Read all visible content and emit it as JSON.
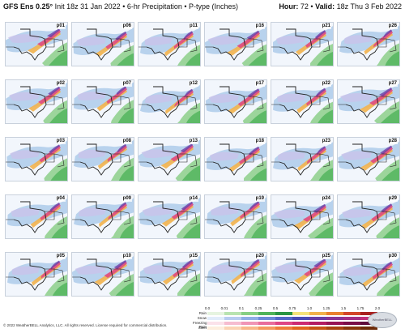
{
  "header": {
    "title_bold": "GFS Ens 0.25°",
    "title_rest": " Init 18z 31 Jan 2022 • 6-hr Precipitation • P-type (Inches)",
    "hour_label": "Hour:",
    "hour_value": "72",
    "valid_label": "Valid:",
    "valid_value": "18z Thu 3 Feb 2022"
  },
  "panels": [
    "p01",
    "p06",
    "p11",
    "p16",
    "p21",
    "p26",
    "p02",
    "p07",
    "p12",
    "p17",
    "p22",
    "p27",
    "p03",
    "p08",
    "p13",
    "p18",
    "p23",
    "p28",
    "p04",
    "p09",
    "p14",
    "p19",
    "p24",
    "p29",
    "p05",
    "p10",
    "p15",
    "p20",
    "p25",
    "p30"
  ],
  "legend": {
    "ticks": [
      "0.0",
      "0.01",
      "0.1",
      "0.25",
      "0.5",
      "0.75",
      "1.0",
      "1.25",
      "1.5",
      "1.75",
      "2.0"
    ],
    "rows": [
      {
        "name": "Rain",
        "colors": [
          "#e6f4e0",
          "#b8e3b0",
          "#86cf84",
          "#4fb35a",
          "#2a9444",
          "#f4e37a",
          "#f2b24c",
          "#e9802f",
          "#d3462a",
          "#a8211f"
        ]
      },
      {
        "name": "Snow",
        "colors": [
          "#e1ecfa",
          "#b7ccf0",
          "#8eaee6",
          "#6c8ad8",
          "#5468c8",
          "#4a4cb4",
          "#6a3ea6",
          "#883596",
          "#a22f86",
          "#c0307a"
        ]
      },
      {
        "name": "Freezing Rain",
        "colors": [
          "#fbe2ea",
          "#f6bcd0",
          "#f094b5",
          "#e86c9b",
          "#de4584",
          "#cc2a72",
          "#b31c62",
          "#961455",
          "#7a0f48",
          "#5e0b3b"
        ]
      },
      {
        "name": "Sleet",
        "colors": [
          "#fdeede",
          "#fbd3b4",
          "#f8b78a",
          "#f4995f",
          "#ee7d3a",
          "#e0661f",
          "#c55414",
          "#a7440f",
          "#88360b",
          "#6c2a08"
        ]
      }
    ]
  },
  "logo_text": "WeatherBELL",
  "footer": "© 2022 WeatherBELL Analytics, LLC. All rights reserved. License required for commercial distribution."
}
